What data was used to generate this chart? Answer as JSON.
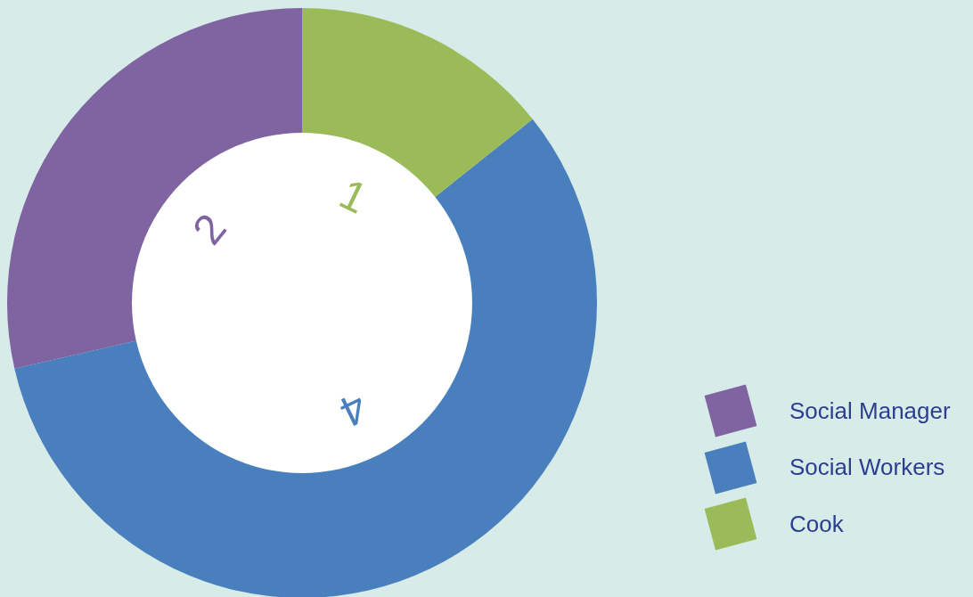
{
  "chart_data": {
    "type": "donut",
    "categories": [
      "Social Manager",
      "Social Workers",
      "Cook"
    ],
    "values": [
      2,
      4,
      1
    ],
    "colors": [
      "#8064a2",
      "#4a7fbe",
      "#9bbb59"
    ],
    "data_labels": true,
    "legend": "bottom right"
  }
}
